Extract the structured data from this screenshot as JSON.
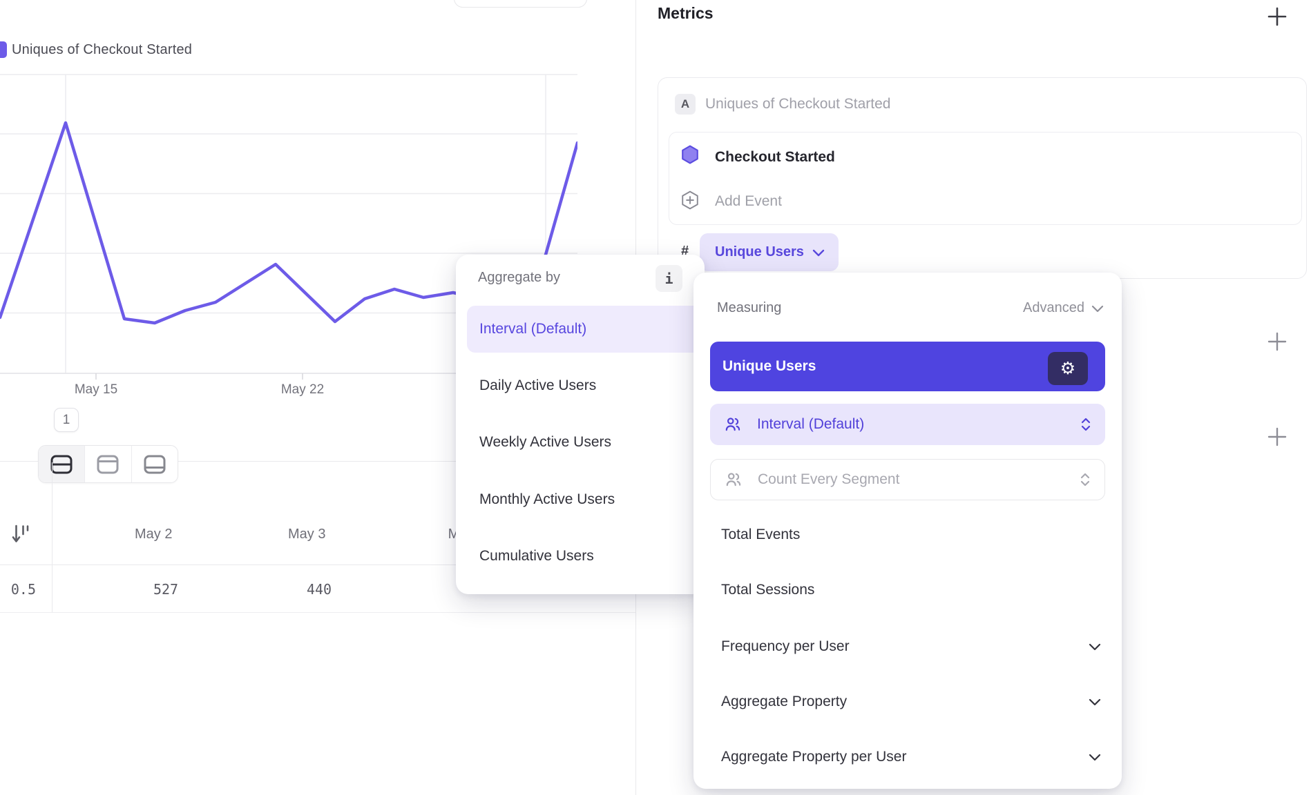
{
  "colors": {
    "accent_purple": "#4f44e0",
    "line_purple": "#6d5be8",
    "pill_bg": "#e8e4fb",
    "selected_light_bg": "#e9e5fc",
    "gear_chip_bg": "#332d64"
  },
  "left": {
    "legend_label": "Uniques of Checkout Started",
    "x_tick_1": "May 15",
    "x_tick_2": "May 22",
    "pagination_badge": "1",
    "table": {
      "row_label_clipped": "0.5",
      "col_1": "May 2",
      "col_2": "May 3",
      "col_3_clipped": "M",
      "val_1": "527",
      "val_2": "440"
    }
  },
  "chart_data": {
    "type": "line",
    "title": "Uniques of Checkout Started",
    "xlabel": "",
    "ylabel": "",
    "x_axis_labels": [
      "May 15",
      "May 22"
    ],
    "grid": true,
    "legend_position": "top-left",
    "visible_values": {
      "May 2": 527,
      "May 3": 440
    },
    "line_points": [
      [
        0,
        353
      ],
      [
        95,
        71
      ],
      [
        180,
        355
      ],
      [
        224,
        361
      ],
      [
        268,
        343
      ],
      [
        312,
        331
      ],
      [
        399,
        276
      ],
      [
        485,
        359
      ],
      [
        528,
        326
      ],
      [
        571,
        312
      ],
      [
        613,
        324
      ],
      [
        656,
        317
      ],
      [
        700,
        327
      ],
      [
        748,
        333
      ],
      [
        790,
        262
      ],
      [
        836,
        100
      ]
    ]
  },
  "right": {
    "header_title": "Metrics",
    "metric_card": {
      "badge": "A",
      "title": "Uniques of Checkout Started",
      "event_name": "Checkout Started",
      "add_event_label": "Add Event",
      "operator_symbol": "#",
      "measure_pill_label": "Unique Users"
    }
  },
  "aggregate_popup": {
    "title": "Aggregate by",
    "info_glyph": "i",
    "selected": "Interval (Default)",
    "items": [
      {
        "label": "Daily Active Users"
      },
      {
        "label": "Weekly Active Users"
      },
      {
        "label": "Monthly Active Users"
      },
      {
        "label": "Cumulative Users"
      }
    ]
  },
  "measuring_popup": {
    "label": "Measuring",
    "mode": "Advanced",
    "selected": "Unique Users",
    "gear_glyph": "⚙",
    "interval_select": "Interval (Default)",
    "segment_select": "Count Every Segment",
    "items": [
      {
        "label": "Total Events"
      },
      {
        "label": "Total Sessions"
      },
      {
        "label": "Frequency per User"
      },
      {
        "label": "Aggregate Property"
      },
      {
        "label": "Aggregate Property per User"
      }
    ]
  }
}
